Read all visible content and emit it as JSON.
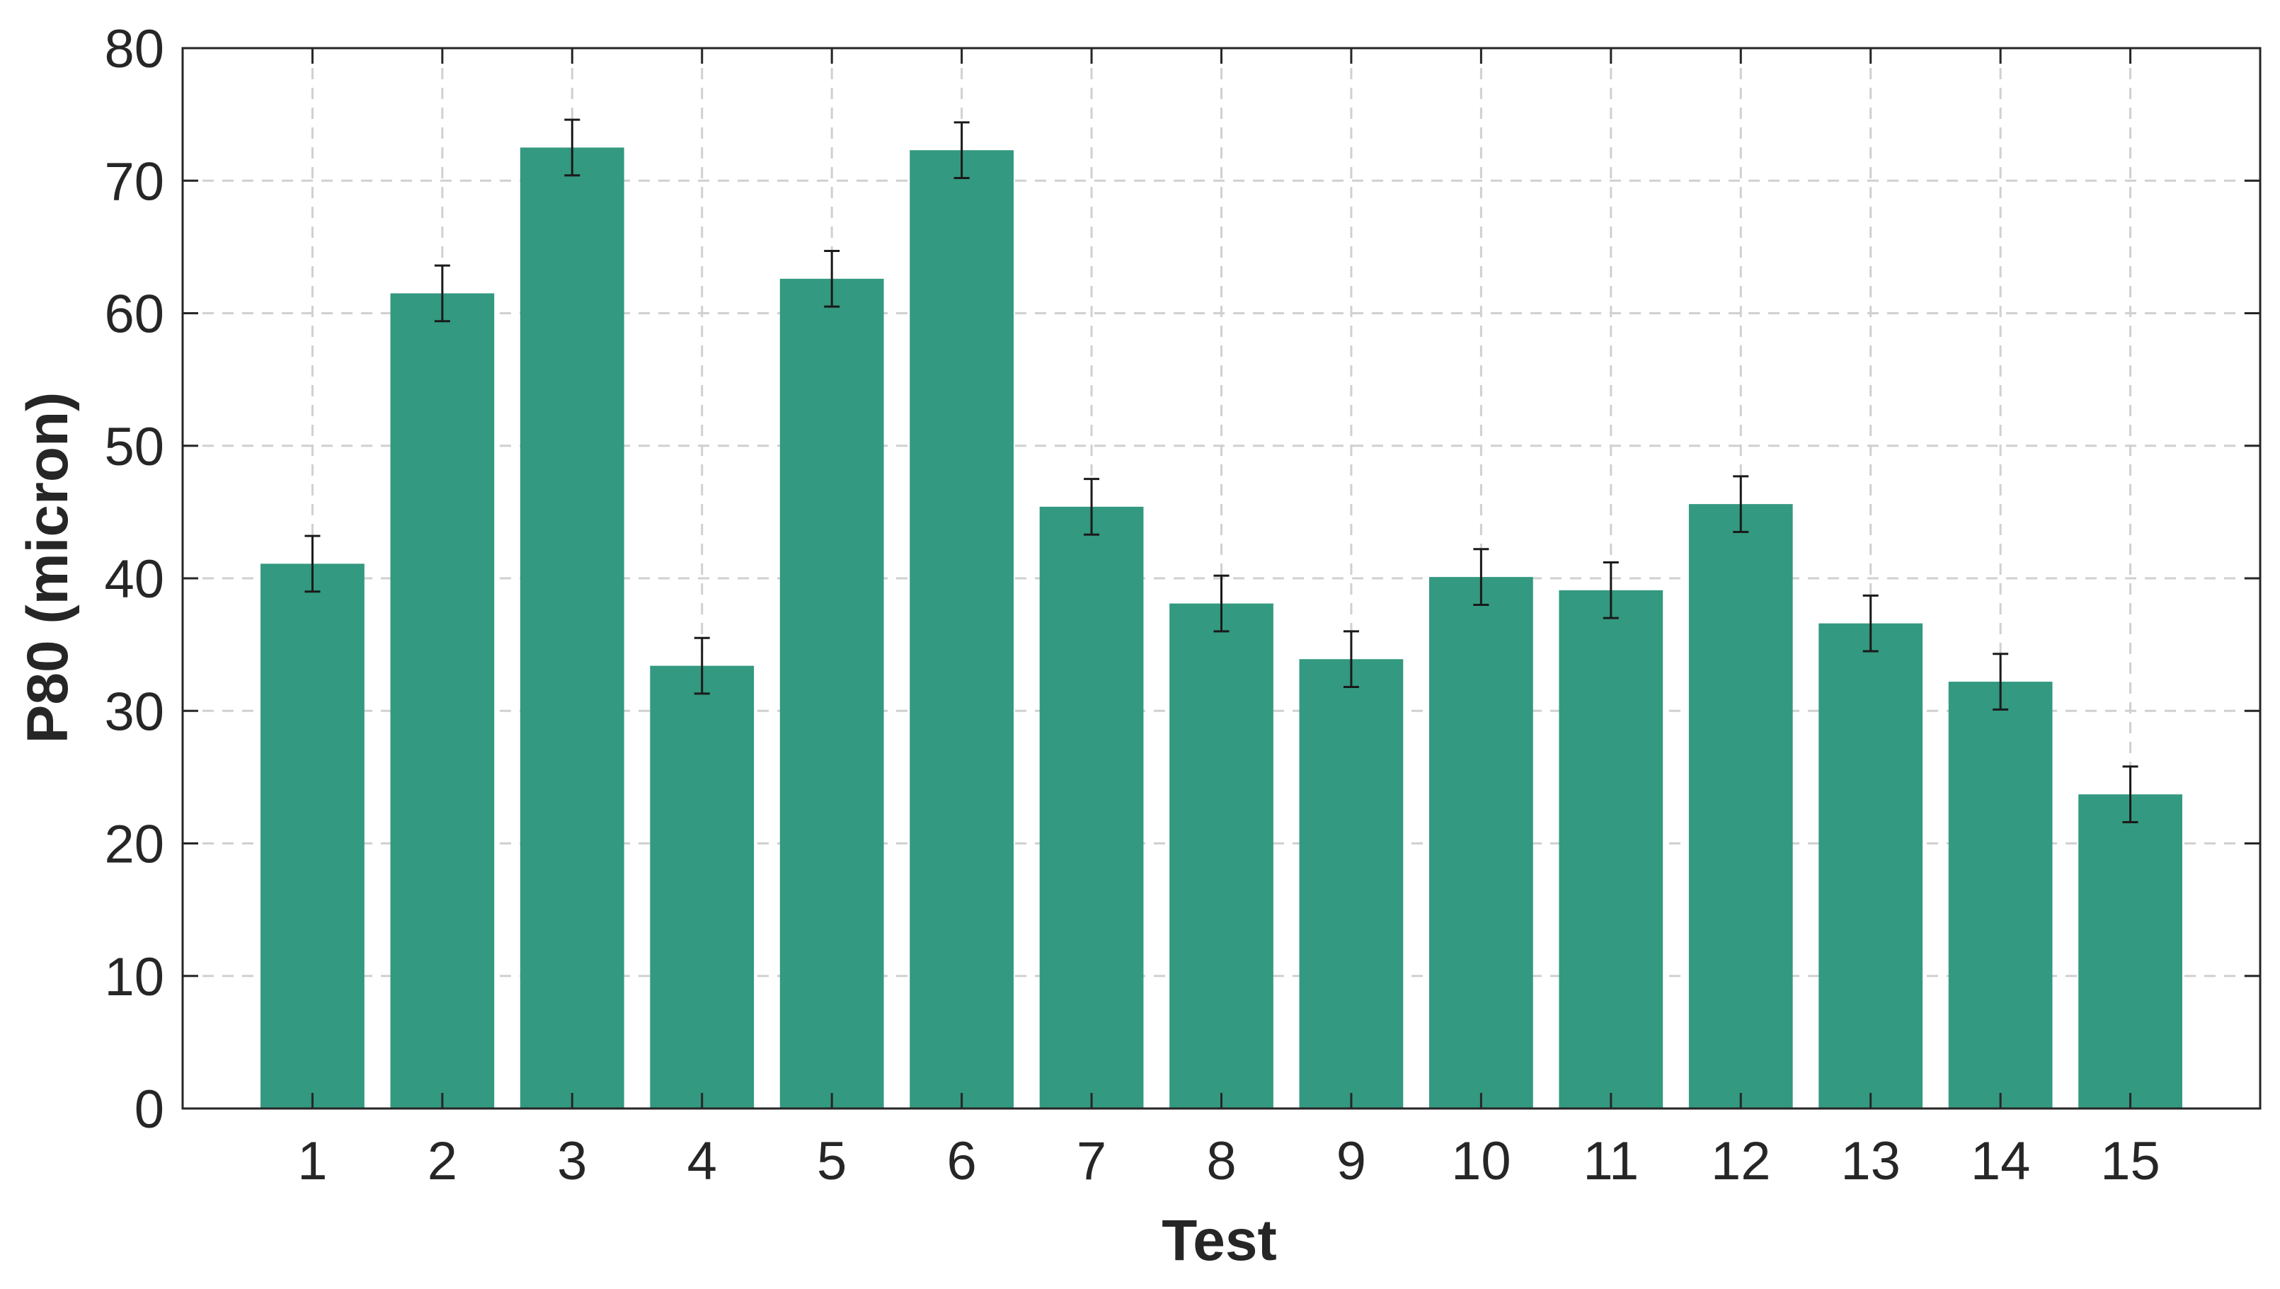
{
  "chart_data": {
    "type": "bar",
    "title": "",
    "xlabel": "Test",
    "ylabel": "P80 (micron)",
    "categories": [
      "1",
      "2",
      "3",
      "4",
      "5",
      "6",
      "7",
      "8",
      "9",
      "10",
      "11",
      "12",
      "13",
      "14",
      "15"
    ],
    "values": [
      41.1,
      61.5,
      72.5,
      33.4,
      62.6,
      72.3,
      45.4,
      38.1,
      33.9,
      40.1,
      39.1,
      45.6,
      36.6,
      32.2,
      23.7
    ],
    "error": [
      2.1,
      2.1,
      2.1,
      2.1,
      2.1,
      2.1,
      2.1,
      2.1,
      2.1,
      2.1,
      2.1,
      2.1,
      2.1,
      2.1,
      2.1
    ],
    "ylim": [
      0,
      80
    ],
    "yticks": [
      0,
      10,
      20,
      30,
      40,
      50,
      60,
      70,
      80
    ],
    "xlim": [
      0,
      16
    ],
    "grid": true,
    "legend": "none",
    "bar_color": "#339980",
    "errorbar_color": "#1a1a1a"
  }
}
